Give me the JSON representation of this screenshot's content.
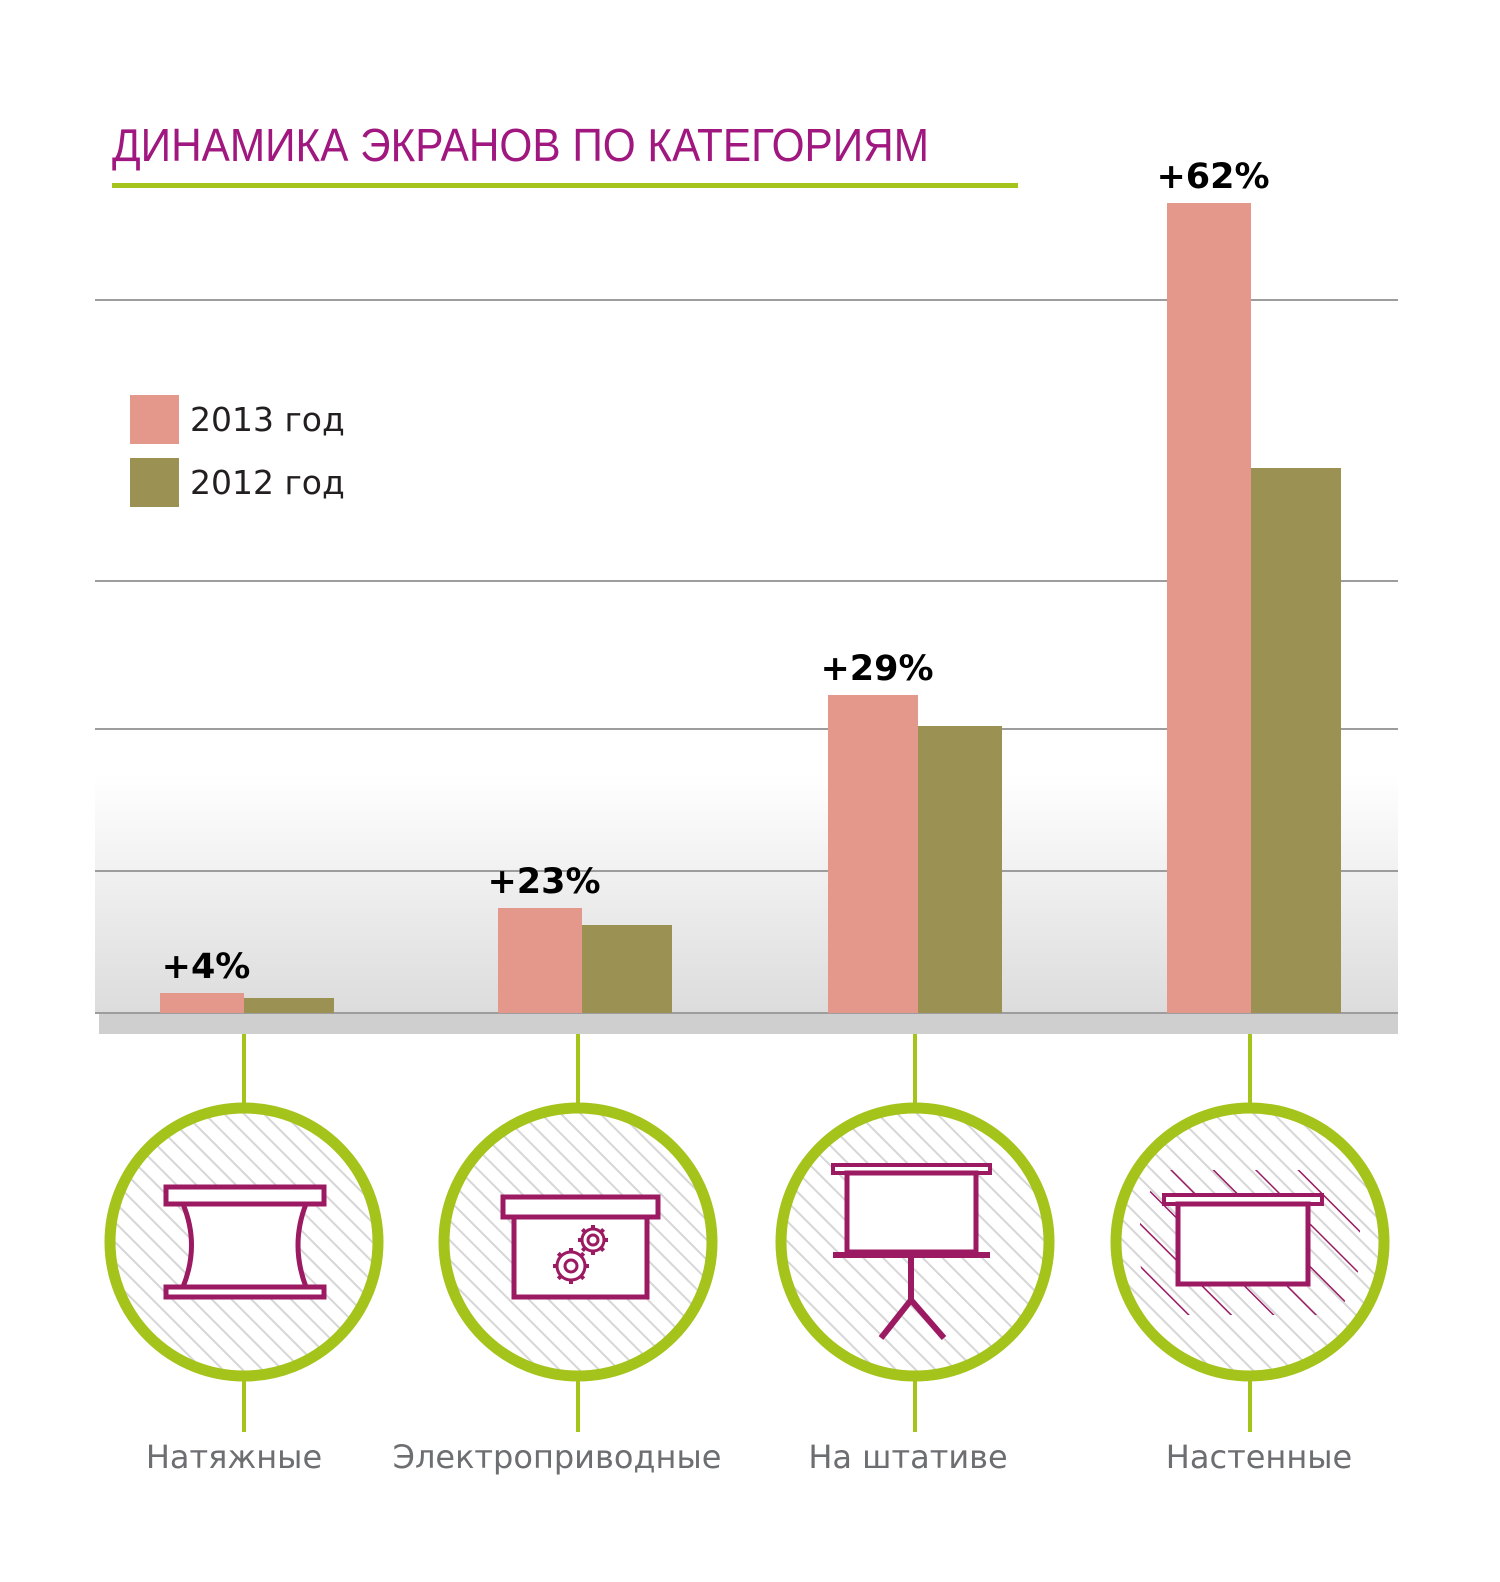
{
  "chart_data": {
    "type": "bar",
    "title": "ДИНАМИКА ЭКРАНОВ ПО КАТЕГОРИЯМ",
    "categories": [
      "Натяжные",
      "Электроприводные",
      "На штативе",
      "Настенные"
    ],
    "series": [
      {
        "name": "2013 год",
        "color": "#e4988c",
        "values": [
          2.0,
          10.5,
          31.8,
          81.0
        ]
      },
      {
        "name": "2012 год",
        "color": "#9a9152",
        "values": [
          1.5,
          8.8,
          28.7,
          54.5
        ]
      }
    ],
    "growth_labels": [
      "+4%",
      "+23%",
      "+29%",
      "+62%"
    ],
    "ylim": [
      0,
      90
    ],
    "gridlines": [
      0,
      14.2,
      28.4,
      43.2,
      71.3
    ],
    "grid": true,
    "legend": "left-upper",
    "xlabel": "",
    "ylabel": ""
  },
  "icons": [
    "tensioned-screen-icon",
    "motorized-screen-icon",
    "tripod-screen-icon",
    "wall-screen-icon"
  ],
  "colors": {
    "title": "#a0177f",
    "accent_green": "#a4c31b",
    "icon_stroke": "#9b1a62",
    "grid": "#9d9d9d",
    "baseline_band": "#cfcfcf",
    "category_text": "#6d6e71"
  }
}
